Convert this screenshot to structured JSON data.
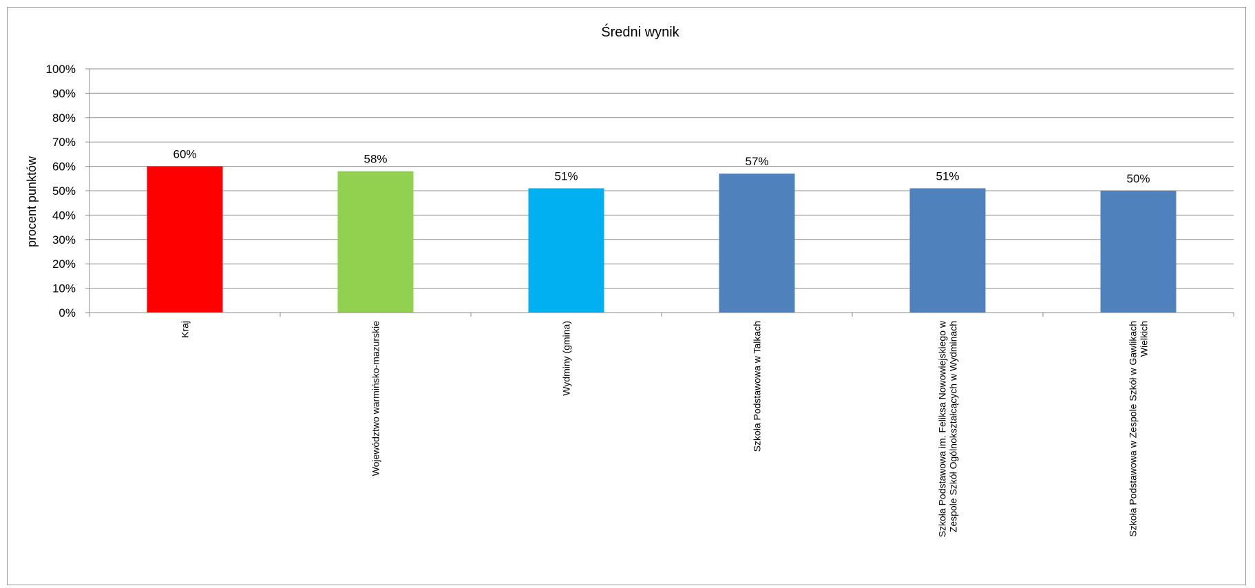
{
  "chart_data": {
    "type": "bar",
    "title": "Średni wynik",
    "xlabel": "",
    "ylabel": "procent punktów",
    "categories": [
      [
        "Kraj"
      ],
      [
        "Województwo warmińsko-mazurskie"
      ],
      [
        "Wydminy (gmina)"
      ],
      [
        "Szkoła Podstawowa w Talkach"
      ],
      [
        "Szkoła Podstawowa im. Feliksa Nowowiejskiego w",
        "Zespole Szkół Ogólnokształcących w Wydminach"
      ],
      [
        "Szkoła Podstawowa w Zespole Szkół w Gawlikach",
        "Wielkich"
      ]
    ],
    "values": [
      60,
      58,
      51,
      57,
      51,
      50
    ],
    "data_labels": [
      "60%",
      "58%",
      "51%",
      "57%",
      "51%",
      "50%"
    ],
    "colors": [
      "#FF0000",
      "#92D050",
      "#00B0F0",
      "#4F81BD",
      "#4F81BD",
      "#4F81BD"
    ],
    "ylim": [
      0,
      100
    ],
    "yticks": [
      "0%",
      "10%",
      "20%",
      "30%",
      "40%",
      "50%",
      "60%",
      "70%",
      "80%",
      "90%",
      "100%"
    ],
    "grid": true,
    "legend": "none"
  }
}
